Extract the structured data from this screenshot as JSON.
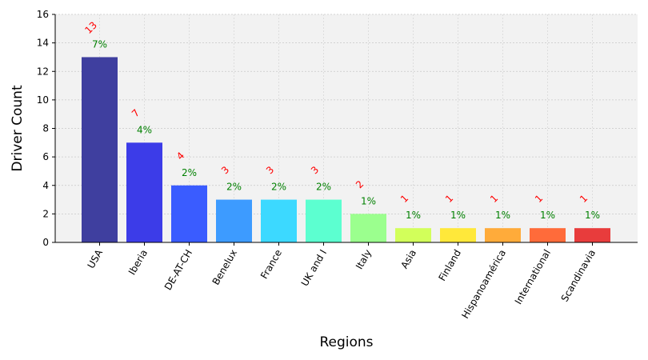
{
  "chart_data": {
    "type": "bar",
    "title": "",
    "xlabel": "Regions",
    "ylabel": "Driver Count",
    "categories": [
      "USA",
      "Iberia",
      "DE-AT-CH",
      "Benelux",
      "France",
      "UK and I",
      "Italy",
      "Asia",
      "Finland",
      "Hispanoamérica",
      "International",
      "Scandinavia"
    ],
    "values": [
      13,
      7,
      4,
      3,
      3,
      3,
      2,
      1,
      1,
      1,
      1,
      1
    ],
    "percent_labels": [
      "7%",
      "4%",
      "2%",
      "2%",
      "2%",
      "2%",
      "1%",
      "1%",
      "1%",
      "1%",
      "1%",
      "1%"
    ],
    "colors": [
      "#3f3f9f",
      "#3c3ce8",
      "#3a5cff",
      "#3d9bff",
      "#3cd9ff",
      "#5cffd0",
      "#9bff8e",
      "#d2ff5a",
      "#ffe83a",
      "#ffab3a",
      "#ff6b3a",
      "#e83c3c"
    ],
    "ylim": [
      0,
      16
    ],
    "yticks": [
      0,
      2,
      4,
      6,
      8,
      10,
      12,
      14,
      16
    ],
    "grid": true,
    "background": "#f2f2f2",
    "count_label_color": "#ff0000",
    "percent_label_color": "#008000"
  }
}
